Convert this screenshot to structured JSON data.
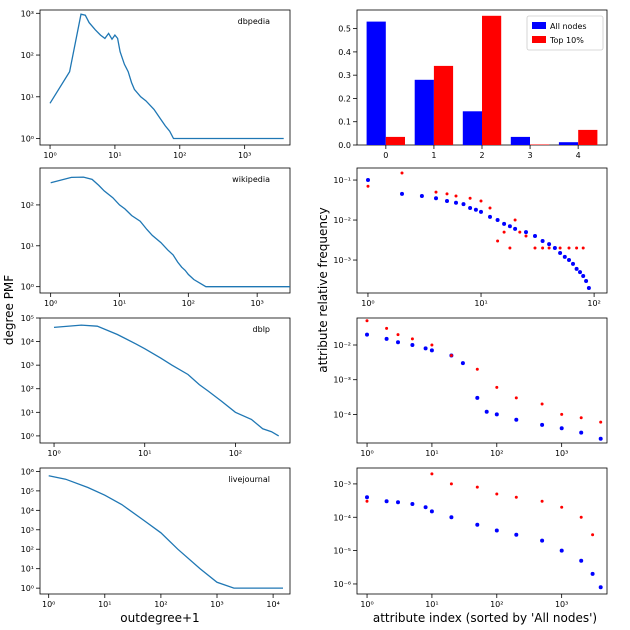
{
  "figure": {
    "left_ylabel": "degree PMF",
    "left_xlabel": "outdegree+1",
    "right_ylabel": "attribute relative frequency",
    "right_xlabel": "attribute index (sorted by 'All nodes')"
  },
  "colors": {
    "line": "#1f77b4",
    "all_nodes": "#0000ff",
    "top10": "#ff0000"
  },
  "chart_data": [
    {
      "id": "dbpedia-degree",
      "type": "line",
      "title": "dbpedia",
      "xscale": "log",
      "yscale": "log",
      "xlim": [
        0.7,
        5000
      ],
      "ylim": [
        0.7,
        1200
      ],
      "xticks": [
        {
          "v": 1,
          "t": "10⁰"
        },
        {
          "v": 10,
          "t": "10¹"
        },
        {
          "v": 100,
          "t": "10²"
        },
        {
          "v": 1000,
          "t": "10³"
        }
      ],
      "yticks": [
        {
          "v": 1,
          "t": "10⁰"
        },
        {
          "v": 10,
          "t": "10¹"
        },
        {
          "v": 100,
          "t": "10²"
        },
        {
          "v": 1000,
          "t": "10³"
        }
      ],
      "x": [
        1,
        2,
        3,
        3.5,
        4,
        5,
        6,
        7,
        8,
        9,
        10,
        11,
        12,
        14,
        16,
        18,
        20,
        25,
        30,
        40,
        50,
        60,
        70,
        80,
        100,
        300,
        1000,
        4000
      ],
      "y": [
        7,
        40,
        950,
        900,
        600,
        400,
        300,
        250,
        330,
        240,
        300,
        250,
        120,
        60,
        40,
        22,
        15,
        10,
        8,
        5,
        3,
        2,
        1.5,
        1,
        1,
        1,
        1,
        1
      ]
    },
    {
      "id": "dbpedia-attr",
      "type": "bar",
      "title": "",
      "categories": [
        "0",
        "1",
        "2",
        "3",
        "4"
      ],
      "ylim": [
        0,
        0.58
      ],
      "yticks": [
        {
          "v": 0,
          "t": "0.0"
        },
        {
          "v": 0.1,
          "t": "0.1"
        },
        {
          "v": 0.2,
          "t": "0.2"
        },
        {
          "v": 0.3,
          "t": "0.3"
        },
        {
          "v": 0.4,
          "t": "0.4"
        },
        {
          "v": 0.5,
          "t": "0.5"
        }
      ],
      "legend_position": "top-right",
      "series": [
        {
          "name": "All nodes",
          "color": "#0000ff",
          "values": [
            0.53,
            0.28,
            0.145,
            0.035,
            0.012
          ]
        },
        {
          "name": "Top 10%",
          "color": "#ff0000",
          "values": [
            0.035,
            0.34,
            0.555,
            0.002,
            0.065
          ]
        }
      ]
    },
    {
      "id": "wikipedia-degree",
      "type": "line",
      "title": "wikipedia",
      "xscale": "log",
      "yscale": "log",
      "xlim": [
        0.7,
        3000
      ],
      "ylim": [
        0.7,
        800
      ],
      "xticks": [
        {
          "v": 1,
          "t": "10⁰"
        },
        {
          "v": 10,
          "t": "10¹"
        },
        {
          "v": 100,
          "t": "10²"
        },
        {
          "v": 1000,
          "t": "10³"
        }
      ],
      "yticks": [
        {
          "v": 1,
          "t": "10⁰"
        },
        {
          "v": 10,
          "t": "10¹"
        },
        {
          "v": 100,
          "t": "10²"
        }
      ],
      "x": [
        1,
        2,
        3,
        4,
        5,
        6,
        8,
        10,
        12,
        15,
        20,
        25,
        30,
        40,
        50,
        60,
        70,
        80,
        90,
        100,
        120,
        150,
        180,
        200,
        250,
        3000
      ],
      "y": [
        350,
        470,
        480,
        420,
        300,
        220,
        150,
        100,
        80,
        55,
        40,
        25,
        18,
        12,
        8,
        6,
        4,
        3,
        2.5,
        2,
        1.5,
        1.2,
        1,
        1,
        1,
        1
      ]
    },
    {
      "id": "wikipedia-attr",
      "type": "scatter",
      "title": "",
      "xscale": "log",
      "yscale": "log",
      "xlim": [
        0.8,
        130
      ],
      "ylim": [
        0.00015,
        0.2
      ],
      "xticks": [
        {
          "v": 1,
          "t": "10⁰"
        },
        {
          "v": 10,
          "t": "10¹"
        },
        {
          "v": 100,
          "t": "10²"
        }
      ],
      "yticks": [
        {
          "v": 0.1,
          "t": "10⁻¹"
        },
        {
          "v": 0.01,
          "t": "10⁻²"
        },
        {
          "v": 0.001,
          "t": "10⁻³"
        }
      ],
      "series": [
        {
          "name": "All nodes",
          "color": "#0000ff",
          "x": [
            1,
            2,
            3,
            4,
            5,
            6,
            7,
            8,
            9,
            10,
            12,
            14,
            16,
            18,
            20,
            25,
            30,
            35,
            40,
            45,
            50,
            55,
            60,
            65,
            70,
            75,
            80,
            85,
            90
          ],
          "y": [
            0.1,
            0.045,
            0.04,
            0.035,
            0.03,
            0.027,
            0.025,
            0.02,
            0.018,
            0.016,
            0.012,
            0.01,
            0.008,
            0.007,
            0.006,
            0.005,
            0.004,
            0.003,
            0.0025,
            0.002,
            0.0015,
            0.0012,
            0.001,
            0.0008,
            0.0006,
            0.0005,
            0.0004,
            0.0003,
            0.0002
          ]
        },
        {
          "name": "Top 10%",
          "color": "#ff0000",
          "x": [
            1,
            2,
            4,
            5,
            6,
            8,
            10,
            12,
            14,
            16,
            18,
            20,
            22,
            25,
            30,
            35,
            40,
            50,
            60,
            70,
            80
          ],
          "y": [
            0.07,
            0.15,
            0.05,
            0.045,
            0.04,
            0.035,
            0.03,
            0.02,
            0.003,
            0.005,
            0.002,
            0.01,
            0.005,
            0.004,
            0.002,
            0.002,
            0.002,
            0.002,
            0.002,
            0.002,
            0.002
          ]
        }
      ]
    },
    {
      "id": "dblp-degree",
      "type": "line",
      "title": "dblp",
      "xscale": "log",
      "yscale": "log",
      "xlim": [
        0.7,
        400
      ],
      "ylim": [
        0.5,
        100000
      ],
      "xticks": [
        {
          "v": 1,
          "t": "10⁰"
        },
        {
          "v": 10,
          "t": "10¹"
        },
        {
          "v": 100,
          "t": "10²"
        }
      ],
      "yticks": [
        {
          "v": 1,
          "t": "10⁰"
        },
        {
          "v": 10,
          "t": "10¹"
        },
        {
          "v": 100,
          "t": "10²"
        },
        {
          "v": 1000,
          "t": "10³"
        },
        {
          "v": 10000,
          "t": "10⁴"
        },
        {
          "v": 100000,
          "t": "10⁵"
        }
      ],
      "x": [
        1,
        2,
        3,
        5,
        8,
        10,
        15,
        20,
        30,
        40,
        50,
        70,
        100,
        150,
        200,
        250,
        300
      ],
      "y": [
        40000,
        50000,
        45000,
        20000,
        8000,
        5000,
        2000,
        1000,
        400,
        150,
        80,
        30,
        10,
        5,
        2,
        1.5,
        1
      ]
    },
    {
      "id": "dblp-attr",
      "type": "scatter",
      "title": "",
      "xscale": "log",
      "yscale": "log",
      "xlim": [
        0.7,
        5000
      ],
      "ylim": [
        1.5e-05,
        0.06
      ],
      "xticks": [
        {
          "v": 1,
          "t": "10⁰"
        },
        {
          "v": 10,
          "t": "10¹"
        },
        {
          "v": 100,
          "t": "10²"
        },
        {
          "v": 1000,
          "t": "10³"
        }
      ],
      "yticks": [
        {
          "v": 0.01,
          "t": "10⁻²"
        },
        {
          "v": 0.001,
          "t": "10⁻³"
        },
        {
          "v": 0.0001,
          "t": "10⁻⁴"
        }
      ],
      "series": [
        {
          "name": "All nodes",
          "color": "#0000ff",
          "x": [
            1,
            2,
            3,
            5,
            8,
            10,
            20,
            30,
            50,
            70,
            100,
            200,
            500,
            1000,
            2000,
            4000
          ],
          "y": [
            0.02,
            0.015,
            0.012,
            0.01,
            0.008,
            0.007,
            0.005,
            0.003,
            0.0003,
            0.00012,
            0.0001,
            7e-05,
            5e-05,
            4e-05,
            3e-05,
            2e-05
          ]
        },
        {
          "name": "Top 10%",
          "color": "#ff0000",
          "x": [
            1,
            2,
            3,
            5,
            10,
            20,
            50,
            100,
            200,
            500,
            1000,
            2000,
            4000
          ],
          "y": [
            0.05,
            0.03,
            0.02,
            0.015,
            0.01,
            0.005,
            0.002,
            0.0006,
            0.0003,
            0.0002,
            0.0001,
            8e-05,
            6e-05
          ]
        }
      ]
    },
    {
      "id": "livejournal-degree",
      "type": "line",
      "title": "livejournal",
      "xscale": "log",
      "yscale": "log",
      "xlim": [
        0.7,
        20000
      ],
      "ylim": [
        0.5,
        1500000
      ],
      "xticks": [
        {
          "v": 1,
          "t": "10⁰"
        },
        {
          "v": 10,
          "t": "10¹"
        },
        {
          "v": 100,
          "t": "10²"
        },
        {
          "v": 1000,
          "t": "10³"
        },
        {
          "v": 10000,
          "t": "10⁴"
        }
      ],
      "yticks": [
        {
          "v": 1,
          "t": "10⁰"
        },
        {
          "v": 10,
          "t": "10¹"
        },
        {
          "v": 100,
          "t": "10²"
        },
        {
          "v": 1000,
          "t": "10³"
        },
        {
          "v": 10000,
          "t": "10⁴"
        },
        {
          "v": 100000,
          "t": "10⁵"
        },
        {
          "v": 1000000,
          "t": "10⁶"
        }
      ],
      "x": [
        1,
        2,
        5,
        10,
        20,
        50,
        100,
        200,
        500,
        1000,
        2000,
        5000,
        15000
      ],
      "y": [
        600000,
        400000,
        150000,
        60000,
        20000,
        3000,
        700,
        100,
        10,
        2,
        1,
        1,
        1
      ]
    },
    {
      "id": "livejournal-attr",
      "type": "scatter",
      "title": "",
      "xscale": "log",
      "yscale": "log",
      "xlim": [
        0.7,
        5000
      ],
      "ylim": [
        5e-07,
        0.003
      ],
      "xticks": [
        {
          "v": 1,
          "t": "10⁰"
        },
        {
          "v": 10,
          "t": "10¹"
        },
        {
          "v": 100,
          "t": "10²"
        },
        {
          "v": 1000,
          "t": "10³"
        }
      ],
      "yticks": [
        {
          "v": 0.001,
          "t": "10⁻³"
        },
        {
          "v": 0.0001,
          "t": "10⁻⁴"
        },
        {
          "v": 1e-05,
          "t": "10⁻⁵"
        },
        {
          "v": 1e-06,
          "t": "10⁻⁶"
        }
      ],
      "series": [
        {
          "name": "All nodes",
          "color": "#0000ff",
          "x": [
            1,
            2,
            3,
            5,
            8,
            10,
            20,
            50,
            100,
            200,
            500,
            1000,
            2000,
            3000,
            4000
          ],
          "y": [
            0.0004,
            0.0003,
            0.00028,
            0.00025,
            0.0002,
            0.00015,
            0.0001,
            6e-05,
            4e-05,
            3e-05,
            2e-05,
            1e-05,
            5e-06,
            2e-06,
            8e-07
          ]
        },
        {
          "name": "Top 10%",
          "color": "#ff0000",
          "x": [
            1,
            10,
            20,
            50,
            100,
            200,
            500,
            1000,
            2000,
            3000
          ],
          "y": [
            0.0003,
            0.002,
            0.001,
            0.0008,
            0.0005,
            0.0004,
            0.0003,
            0.0002,
            0.0001,
            3e-05
          ]
        }
      ]
    }
  ]
}
